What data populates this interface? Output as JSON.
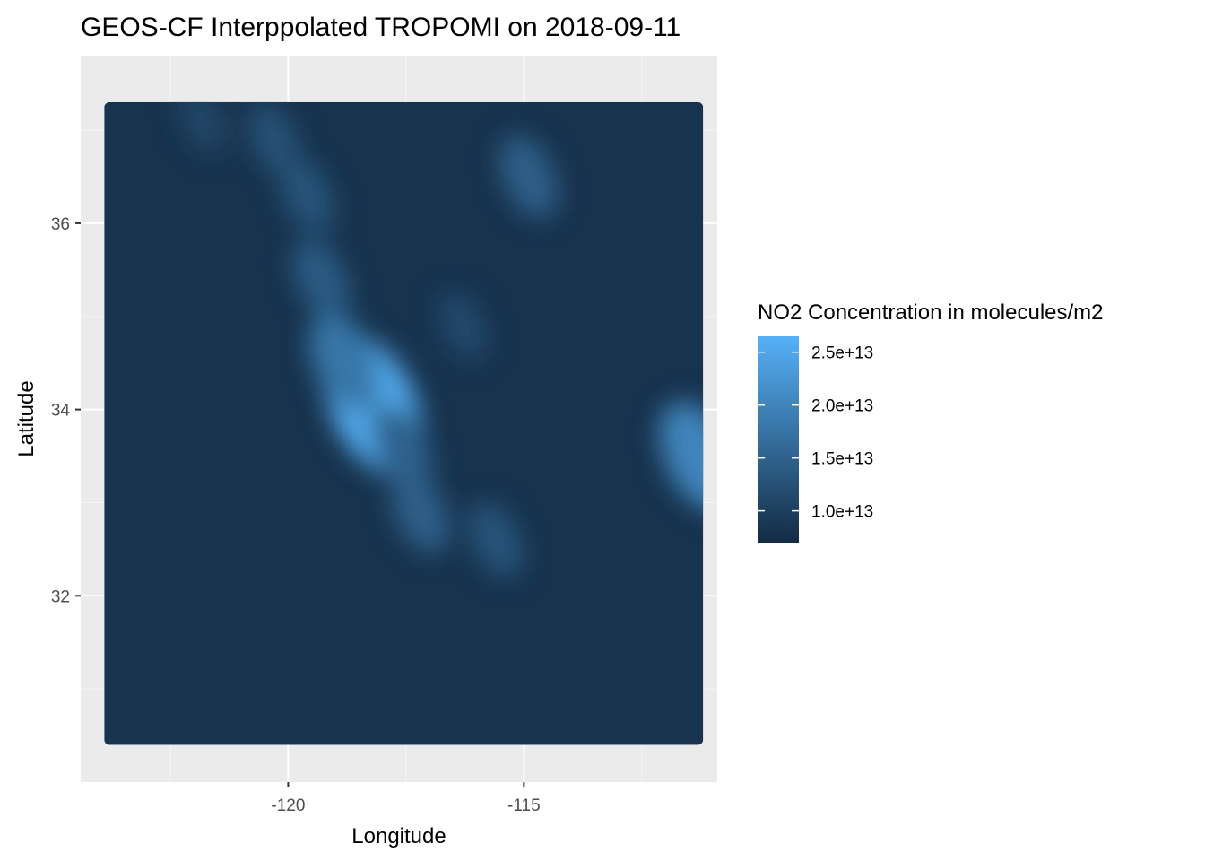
{
  "chart_data": {
    "type": "heatmap",
    "title": "GEOS-CF Interppolated TROPOMI on 2018-09-11",
    "xlabel": "Longitude",
    "ylabel": "Latitude",
    "xlim": [
      -124.4,
      -110.9
    ],
    "ylim": [
      30.0,
      37.8
    ],
    "x_ticks": [
      -120,
      -115
    ],
    "x_tick_labels": [
      "-120",
      "-115"
    ],
    "y_ticks": [
      32,
      34,
      36
    ],
    "y_tick_labels": [
      "32",
      "34",
      "36"
    ],
    "grid": true,
    "legend": {
      "title": "NO2 Concentration in molecules/m2",
      "placement": "right",
      "min": 7000000000000.0,
      "max": 26500000000000.0,
      "breaks": [
        10000000000000.0,
        15000000000000.0,
        20000000000000.0,
        25000000000000.0
      ],
      "break_labels": [
        "1.0e+13",
        "1.5e+13",
        "2.0e+13",
        "2.5e+13"
      ],
      "low_color": "#132b43",
      "high_color": "#56b1f7"
    },
    "data_extent": {
      "lon": [
        -123.9,
        -111.2
      ],
      "lat": [
        30.4,
        37.3
      ]
    },
    "background_level": 8200000000000.0,
    "hotspots": [
      {
        "lon": -118.2,
        "lat": 34.05,
        "value": 26000000000000.0
      },
      {
        "lon": -118.8,
        "lat": 34.5,
        "value": 18000000000000.0
      },
      {
        "lon": -117.6,
        "lat": 33.6,
        "value": 15000000000000.0
      },
      {
        "lon": -117.2,
        "lat": 32.9,
        "value": 14500000000000.0
      },
      {
        "lon": -119.3,
        "lat": 35.4,
        "value": 14000000000000.0
      },
      {
        "lon": -119.6,
        "lat": 36.3,
        "value": 13000000000000.0
      },
      {
        "lon": -120.3,
        "lat": 36.9,
        "value": 12500000000000.0
      },
      {
        "lon": -114.9,
        "lat": 36.5,
        "value": 14500000000000.0
      },
      {
        "lon": -115.6,
        "lat": 32.6,
        "value": 13000000000000.0
      },
      {
        "lon": -111.3,
        "lat": 33.5,
        "value": 20000000000000.0
      },
      {
        "lon": -116.3,
        "lat": 34.9,
        "value": 11500000000000.0
      },
      {
        "lon": -121.8,
        "lat": 37.1,
        "value": 11000000000000.0
      }
    ]
  }
}
